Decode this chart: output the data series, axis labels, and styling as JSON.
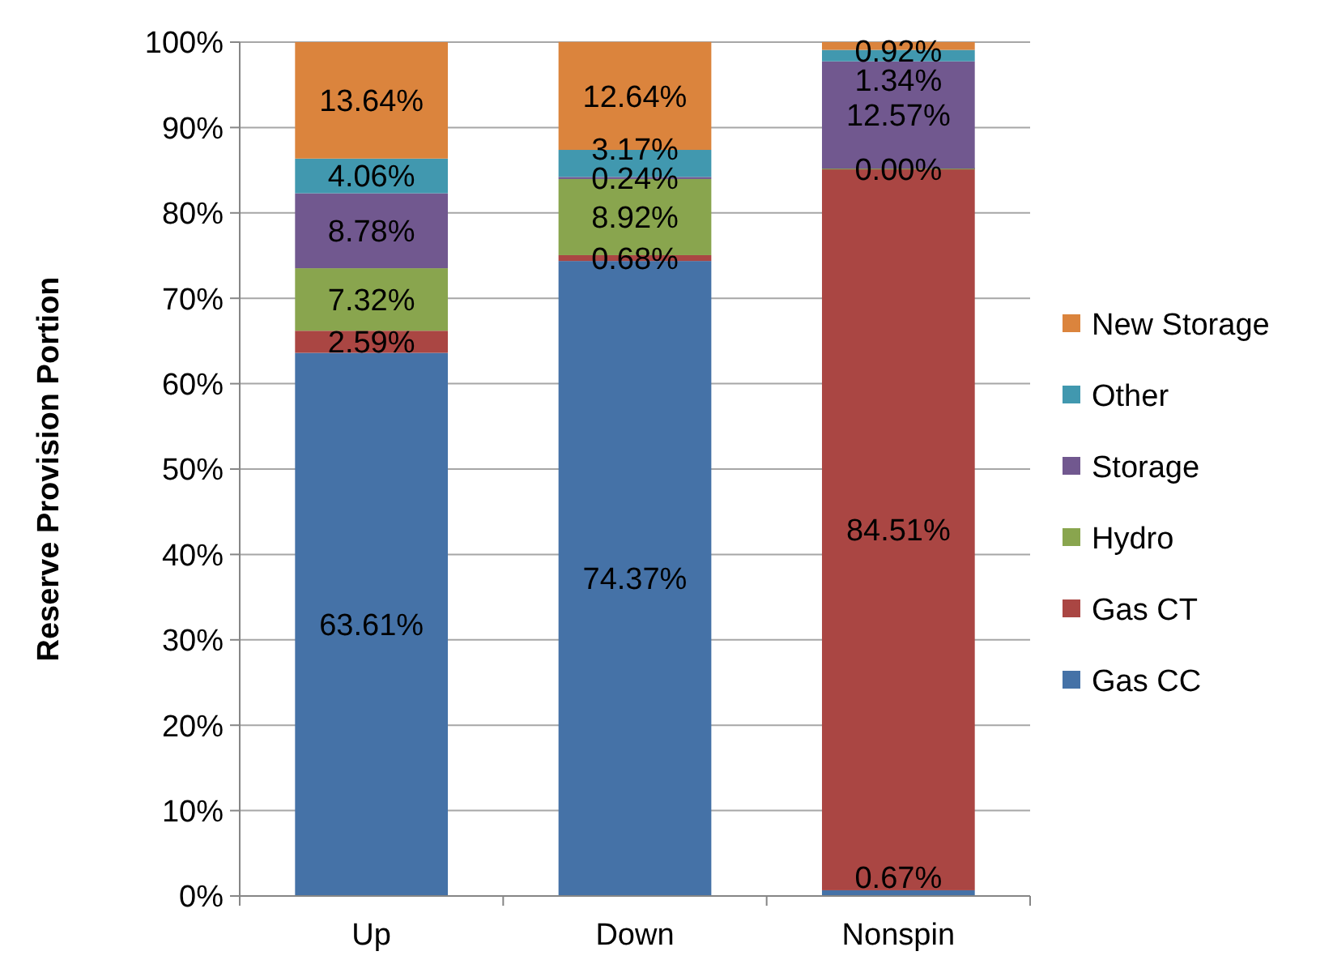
{
  "chart_data": {
    "type": "bar",
    "stacked": true,
    "ylabel": "Reserve Provision Portion",
    "categories": [
      "Up",
      "Down",
      "Nonspin"
    ],
    "series": [
      {
        "name": "Gas CC",
        "color": "#4572a7",
        "values": [
          63.61,
          74.37,
          0.67
        ],
        "value_labels": [
          "63.61%",
          "74.37%",
          "0.67%"
        ]
      },
      {
        "name": "Gas CT",
        "color": "#aa4643",
        "values": [
          2.59,
          0.68,
          84.51
        ],
        "value_labels": [
          "2.59%",
          "0.68%",
          "84.51%"
        ]
      },
      {
        "name": "Hydro",
        "color": "#89a54e",
        "values": [
          7.32,
          8.92,
          0
        ],
        "value_labels": [
          "7.32%",
          "8.92%",
          "0.00%"
        ]
      },
      {
        "name": "Storage",
        "color": "#71588f",
        "values": [
          8.78,
          0.24,
          12.57
        ],
        "value_labels": [
          "8.78%",
          "0.24%",
          "12.57%"
        ]
      },
      {
        "name": "Other",
        "color": "#4198af",
        "values": [
          4.06,
          3.17,
          1.34
        ],
        "value_labels": [
          "4.06%",
          "3.17%",
          "1.34%"
        ]
      },
      {
        "name": "New Storage",
        "color": "#db843d",
        "values": [
          13.64,
          12.64,
          0.92
        ],
        "value_labels": [
          "13.64%",
          "12.64%",
          "0.92%"
        ]
      }
    ],
    "ylim": [
      0,
      100
    ],
    "yticks": [
      {
        "value": 0,
        "label": "0%"
      },
      {
        "value": 10,
        "label": "10%"
      },
      {
        "value": 20,
        "label": "20%"
      },
      {
        "value": 30,
        "label": "30%"
      },
      {
        "value": 40,
        "label": "40%"
      },
      {
        "value": 50,
        "label": "50%"
      },
      {
        "value": 60,
        "label": "60%"
      },
      {
        "value": 70,
        "label": "70%"
      },
      {
        "value": 80,
        "label": "80%"
      },
      {
        "value": 90,
        "label": "90%"
      },
      {
        "value": 100,
        "label": "100%"
      }
    ],
    "grid": "y",
    "legend": "right"
  }
}
